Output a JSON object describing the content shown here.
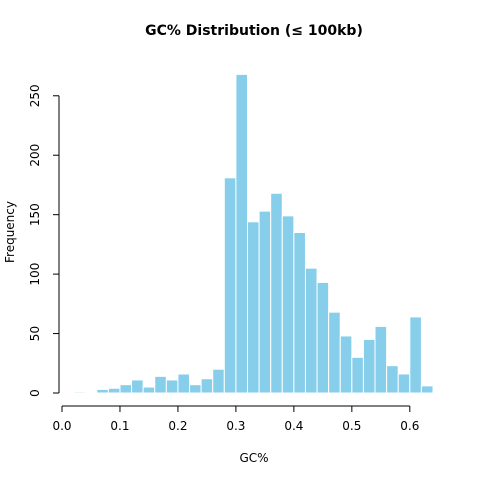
{
  "chart_data": {
    "type": "bar",
    "title": "GC% Distribution (≤ 100kb)",
    "xlabel": "GC%",
    "ylabel": "Frequency",
    "bar_color": "#87CEEB",
    "bar_border_color": "#ffffff",
    "bin_width": 0.02,
    "xlim": [
      0.0,
      0.64
    ],
    "ylim": [
      0,
      270
    ],
    "x_ticks": [
      0.0,
      0.1,
      0.2,
      0.3,
      0.4,
      0.5,
      0.6
    ],
    "x_tick_labels": [
      "0.0",
      "0.1",
      "0.2",
      "0.3",
      "0.4",
      "0.5",
      "0.6"
    ],
    "y_ticks": [
      0,
      50,
      100,
      150,
      200,
      250
    ],
    "y_tick_labels": [
      "0",
      "50",
      "100",
      "150",
      "200",
      "250"
    ],
    "grid": false,
    "bins": [
      {
        "x0": 0.0,
        "x1": 0.02,
        "count": 0
      },
      {
        "x0": 0.02,
        "x1": 0.04,
        "count": 1
      },
      {
        "x0": 0.04,
        "x1": 0.06,
        "count": 0
      },
      {
        "x0": 0.06,
        "x1": 0.08,
        "count": 3
      },
      {
        "x0": 0.08,
        "x1": 0.1,
        "count": 4
      },
      {
        "x0": 0.1,
        "x1": 0.12,
        "count": 7
      },
      {
        "x0": 0.12,
        "x1": 0.14,
        "count": 11
      },
      {
        "x0": 0.14,
        "x1": 0.16,
        "count": 5
      },
      {
        "x0": 0.16,
        "x1": 0.18,
        "count": 14
      },
      {
        "x0": 0.18,
        "x1": 0.2,
        "count": 11
      },
      {
        "x0": 0.2,
        "x1": 0.22,
        "count": 16
      },
      {
        "x0": 0.22,
        "x1": 0.24,
        "count": 7
      },
      {
        "x0": 0.24,
        "x1": 0.26,
        "count": 12
      },
      {
        "x0": 0.26,
        "x1": 0.28,
        "count": 20
      },
      {
        "x0": 0.28,
        "x1": 0.3,
        "count": 181
      },
      {
        "x0": 0.3,
        "x1": 0.32,
        "count": 268
      },
      {
        "x0": 0.32,
        "x1": 0.34,
        "count": 144
      },
      {
        "x0": 0.34,
        "x1": 0.36,
        "count": 153
      },
      {
        "x0": 0.36,
        "x1": 0.38,
        "count": 168
      },
      {
        "x0": 0.38,
        "x1": 0.4,
        "count": 149
      },
      {
        "x0": 0.4,
        "x1": 0.42,
        "count": 135
      },
      {
        "x0": 0.42,
        "x1": 0.44,
        "count": 105
      },
      {
        "x0": 0.44,
        "x1": 0.46,
        "count": 93
      },
      {
        "x0": 0.46,
        "x1": 0.48,
        "count": 68
      },
      {
        "x0": 0.48,
        "x1": 0.5,
        "count": 48
      },
      {
        "x0": 0.5,
        "x1": 0.52,
        "count": 30
      },
      {
        "x0": 0.52,
        "x1": 0.54,
        "count": 45
      },
      {
        "x0": 0.54,
        "x1": 0.56,
        "count": 56
      },
      {
        "x0": 0.56,
        "x1": 0.58,
        "count": 23
      },
      {
        "x0": 0.58,
        "x1": 0.6,
        "count": 16
      },
      {
        "x0": 0.6,
        "x1": 0.62,
        "count": 64
      },
      {
        "x0": 0.62,
        "x1": 0.64,
        "count": 6
      }
    ]
  }
}
